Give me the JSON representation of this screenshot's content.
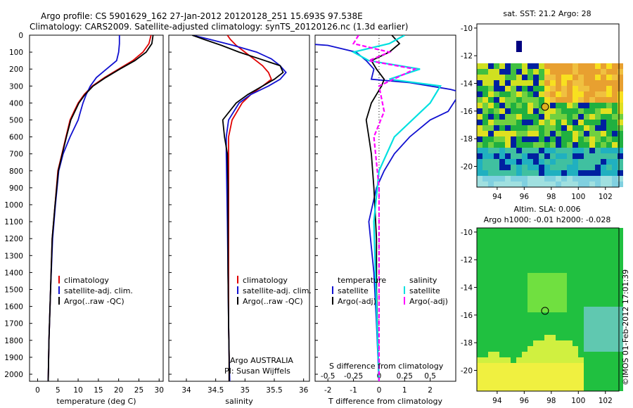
{
  "header": {
    "title_line1": "Argo profile: CS 5901629_162 27-Jan-2012 20120128_251 15.693S 97.538E",
    "title_line2": "Climatology: CARS2009. Satellite-adjusted climatology: synTS_20120126.nc (1.3d earlier)"
  },
  "colors": {
    "climatology": "#e00000",
    "satellite": "#1010d0",
    "argo": "#000000",
    "cyan": "#00e0e0",
    "magenta": "#ff00ff"
  },
  "depth_axis": {
    "ticks": [
      "0",
      "100",
      "200",
      "300",
      "400",
      "500",
      "600",
      "700",
      "800",
      "900",
      "1000",
      "1100",
      "1200",
      "1300",
      "1400",
      "1500",
      "1600",
      "1700",
      "1800",
      "1900",
      "2000"
    ]
  },
  "panel_temperature": {
    "xlabel": "temperature (deg C)",
    "xticks": [
      "0",
      "5",
      "10",
      "15",
      "20",
      "25",
      "30"
    ],
    "legend": [
      "climatology",
      "satellite-adj. clim.",
      "Argo(..raw -QC)"
    ]
  },
  "panel_salinity": {
    "xlabel": "salinity",
    "xticks": [
      "34",
      "34.5",
      "35",
      "35.5",
      "36"
    ],
    "legend": [
      "climatology",
      "satellite-adj. clim.",
      "Argo(..raw -QC)"
    ],
    "note1": "Argo AUSTRALIA",
    "note2": "PI: Susan Wijffels"
  },
  "panel_difference": {
    "top_label": "S difference from climatology",
    "top_ticks": [
      "-0.5",
      "-0.25",
      "0",
      "0.25",
      "0.5"
    ],
    "xlabel": "T difference from climatology",
    "bottom_ticks": [
      "-2",
      "-1",
      "0",
      "1",
      "2"
    ],
    "legend_temp_title": "temperature",
    "legend_sal_title": "salinity",
    "legend_temp": [
      "satellite",
      "Argo(-adj)"
    ],
    "legend_sal": [
      "satellite",
      "Argo(-adj)"
    ]
  },
  "map_sst": {
    "title": "sat. SST: 21.2 Argo: 28",
    "yticks": [
      "-10",
      "-12",
      "-14",
      "-16",
      "-18",
      "-20"
    ],
    "xticks": [
      "94",
      "96",
      "98",
      "100",
      "102"
    ]
  },
  "map_sla": {
    "title1": "Altim. SLA: 0.006",
    "title2": "Argo h1000: -0.01 h2000: -0.028",
    "yticks": [
      "-10",
      "-12",
      "-14",
      "-16",
      "-18",
      "-20"
    ],
    "xticks": [
      "94",
      "96",
      "98",
      "100",
      "102"
    ]
  },
  "credit": "©IMOS 01-Feb-2012 17:01:39",
  "chart_data": [
    {
      "type": "line",
      "title": "Argo profile: CS 5901629_162 27-Jan-2012 20120128_251 15.693S 97.538E",
      "xlabel": "temperature (deg C)",
      "ylabel": "",
      "xlim": [
        -2,
        31
      ],
      "ylim": [
        2050,
        0
      ],
      "series": [
        {
          "name": "climatology",
          "color": "#e00000",
          "x": [
            28,
            27.5,
            26,
            23.5,
            20,
            16.5,
            13.5,
            11.5,
            10,
            9,
            8,
            7,
            6,
            5,
            4.3,
            3.6,
            3.2,
            2.8,
            2.6
          ],
          "y": [
            0,
            50,
            100,
            150,
            200,
            250,
            300,
            350,
            400,
            450,
            500,
            600,
            700,
            800,
            1000,
            1200,
            1500,
            1800,
            2050
          ]
        },
        {
          "name": "satellite-adj. clim.",
          "color": "#1010d0",
          "x": [
            20.2,
            20.2,
            20,
            19.5,
            17,
            14.5,
            13,
            12,
            11.2,
            10.6,
            10,
            8,
            6.3,
            5.2,
            4.4,
            3.7,
            3.2,
            2.8,
            2.6
          ],
          "y": [
            0,
            50,
            100,
            150,
            200,
            250,
            300,
            350,
            400,
            450,
            500,
            600,
            700,
            800,
            1000,
            1200,
            1500,
            1800,
            2050
          ]
        },
        {
          "name": "Argo(..raw -QC)",
          "color": "#000000",
          "x": [
            28.5,
            28.2,
            26.8,
            24,
            20.3,
            16.8,
            13.7,
            11.7,
            10.2,
            9.2,
            8.2,
            7.1,
            6.1,
            5.1,
            4.3,
            3.6,
            3.2,
            2.8,
            2.6
          ],
          "y": [
            0,
            50,
            100,
            150,
            200,
            250,
            300,
            350,
            400,
            450,
            500,
            600,
            700,
            800,
            1000,
            1200,
            1500,
            1800,
            2050
          ]
        }
      ]
    },
    {
      "type": "line",
      "xlabel": "salinity",
      "ylabel": "",
      "xlim": [
        33.7,
        36.1
      ],
      "ylim": [
        2050,
        0
      ],
      "series": [
        {
          "name": "climatology",
          "color": "#e00000",
          "x": [
            34.7,
            34.75,
            34.85,
            35.0,
            35.15,
            35.3,
            35.4,
            35.45,
            35.3,
            35.1,
            34.95,
            34.78,
            34.72,
            34.72,
            34.72,
            34.72,
            34.72,
            34.72,
            34.73,
            34.73
          ],
          "y": [
            0,
            25,
            60,
            100,
            140,
            180,
            220,
            260,
            300,
            350,
            400,
            500,
            600,
            700,
            900,
            1100,
            1400,
            1700,
            1900,
            2050
          ]
        },
        {
          "name": "satellite-adj. clim.",
          "color": "#1010d0",
          "x": [
            34.1,
            34.4,
            34.8,
            35.2,
            35.45,
            35.6,
            35.7,
            35.6,
            35.4,
            35.1,
            34.9,
            34.72,
            34.68,
            34.68,
            34.69,
            34.7,
            34.71,
            34.72,
            34.73,
            34.74
          ],
          "y": [
            0,
            25,
            60,
            100,
            140,
            180,
            220,
            260,
            300,
            350,
            400,
            500,
            600,
            700,
            900,
            1100,
            1400,
            1700,
            1900,
            2050
          ]
        },
        {
          "name": "Argo(..raw -QC)",
          "color": "#000000",
          "x": [
            34.1,
            34.3,
            34.6,
            34.9,
            35.25,
            35.6,
            35.65,
            35.5,
            35.3,
            35.05,
            34.85,
            34.62,
            34.65,
            34.7,
            34.71,
            34.71,
            34.71,
            34.72,
            34.73,
            34.73
          ],
          "y": [
            0,
            25,
            60,
            100,
            140,
            180,
            220,
            260,
            300,
            350,
            400,
            500,
            600,
            700,
            900,
            1100,
            1400,
            1700,
            1900,
            2050
          ]
        }
      ]
    },
    {
      "type": "line",
      "xlabel": "T difference from climatology",
      "ylabel": "",
      "top_xlabel": "S difference from climatology",
      "xlim": [
        -2.5,
        3.0
      ],
      "top_xlim": [
        -0.625,
        0.75
      ],
      "ylim": [
        2050,
        0
      ],
      "series": [
        {
          "name": "temperature satellite",
          "color": "#1010d0",
          "x": [
            -7.5,
            -2.0,
            -0.9,
            -0.5,
            -0.2,
            -0.3,
            1.2,
            2.8,
            3.3,
            3.0,
            2.7,
            2.0,
            1.2,
            0.6,
            0.2,
            -0.1,
            -0.4,
            -0.2,
            -0.1,
            0
          ],
          "y": [
            0,
            60,
            100,
            150,
            200,
            260,
            280,
            320,
            340,
            380,
            450,
            500,
            600,
            700,
            800,
            900,
            1100,
            1400,
            1700,
            2050
          ]
        },
        {
          "name": "temperature Argo(-adj)",
          "color": "#000000",
          "x": [
            0.5,
            0.8,
            0.4,
            -0.3,
            -0.1,
            0.2,
            0.1,
            -0.3,
            -0.5,
            -0.4,
            -0.3,
            -0.2,
            -0.1,
            -0.1,
            -0.05,
            0
          ],
          "y": [
            0,
            50,
            100,
            150,
            200,
            260,
            300,
            400,
            500,
            600,
            700,
            900,
            1200,
            1500,
            1800,
            2050
          ]
        },
        {
          "name": "salinity satellite",
          "color": "#00e0e0",
          "x": [
            0.25,
            0.1,
            -0.25,
            -0.1,
            0.4,
            0.1,
            0.6,
            0.5,
            0.15,
            0.0,
            -0.05,
            -0.03,
            0
          ],
          "y": [
            0,
            50,
            100,
            150,
            200,
            260,
            300,
            400,
            600,
            800,
            1100,
            1500,
            2050
          ]
        },
        {
          "name": "salinity Argo(-adj)",
          "color": "#ff00ff",
          "x": [
            -0.2,
            -0.25,
            0.1,
            -0.1,
            0.35,
            0.0,
            0.05,
            -0.05,
            0.0,
            0.0,
            0.0
          ],
          "y": [
            0,
            50,
            100,
            150,
            200,
            300,
            450,
            600,
            900,
            1400,
            2050
          ]
        }
      ]
    },
    {
      "type": "heatmap",
      "title": "sat. SST: 21.2 Argo: 28",
      "xlabel": "",
      "ylabel": "",
      "xlim": [
        92.5,
        103
      ],
      "ylim": [
        -21.5,
        -9.7
      ],
      "marker": {
        "lon": 97.538,
        "lat": -15.693
      }
    },
    {
      "type": "heatmap",
      "title": "Altim. SLA: 0.006",
      "subtitle": "Argo h1000: -0.01 h2000: -0.028",
      "xlabel": "",
      "ylabel": "",
      "xlim": [
        92.5,
        103
      ],
      "ylim": [
        -21.5,
        -9.7
      ],
      "marker": {
        "lon": 97.538,
        "lat": -15.693
      }
    }
  ]
}
